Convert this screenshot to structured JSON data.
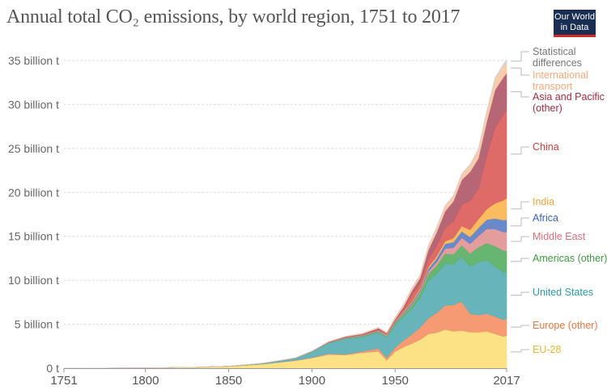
{
  "header": {
    "title": "Annual total CO₂ emissions, by world region, 1751 to 2017",
    "logo_line1": "Our World",
    "logo_line2": "in Data"
  },
  "chart_data": {
    "type": "area",
    "stacked": true,
    "title": "Annual total CO₂ emissions, by world region, 1751 to 2017",
    "xlabel": "",
    "ylabel": "",
    "xlim": [
      1751,
      2017
    ],
    "ylim": [
      0,
      35
    ],
    "unit": "billion t",
    "grid": true,
    "legend_placement": "right (labels at series ends)",
    "x_ticks": [
      "1751",
      "1800",
      "1850",
      "1900",
      "1950",
      "2017"
    ],
    "y_ticks": [
      "0 t",
      "5 billion t",
      "10 billion t",
      "15 billion t",
      "20 billion t",
      "25 billion t",
      "30 billion t",
      "35 billion t"
    ],
    "y_tick_values": [
      0,
      5,
      10,
      15,
      20,
      25,
      30,
      35
    ],
    "x": [
      1751,
      1800,
      1830,
      1850,
      1870,
      1890,
      1900,
      1910,
      1920,
      1930,
      1940,
      1945,
      1950,
      1955,
      1960,
      1965,
      1970,
      1975,
      1980,
      1985,
      1990,
      1995,
      2000,
      2005,
      2010,
      2015,
      2017
    ],
    "series": [
      {
        "name": "EU-28",
        "color": "#fddf7e",
        "label_color": "#e6b830",
        "values": [
          0.01,
          0.03,
          0.1,
          0.2,
          0.45,
          0.85,
          1.15,
          1.55,
          1.5,
          1.75,
          1.9,
          0.9,
          1.9,
          2.4,
          2.8,
          3.25,
          3.9,
          4.05,
          4.4,
          4.2,
          4.3,
          4.1,
          4.1,
          4.2,
          3.9,
          3.6,
          3.7
        ]
      },
      {
        "name": "Europe (other)",
        "color": "#f4956a",
        "label_color": "#e6763e",
        "values": [
          0.0,
          0.0,
          0.0,
          0.01,
          0.02,
          0.04,
          0.07,
          0.1,
          0.08,
          0.15,
          0.35,
          0.3,
          0.45,
          0.75,
          1.05,
          1.4,
          1.8,
          2.25,
          2.75,
          3.0,
          3.3,
          2.1,
          1.95,
          2.0,
          2.0,
          1.9,
          1.95
        ]
      },
      {
        "name": "United States",
        "color": "#5fb0b6",
        "label_color": "#2a9aa3",
        "values": [
          0.0,
          0.0,
          0.01,
          0.02,
          0.08,
          0.25,
          0.65,
          1.2,
          1.75,
          1.65,
          1.8,
          2.3,
          2.55,
          2.7,
          2.9,
          3.35,
          4.3,
          4.45,
          4.75,
          4.6,
          5.1,
          5.35,
          6.0,
          6.1,
          5.7,
          5.4,
          5.3
        ]
      },
      {
        "name": "Americas (other)",
        "color": "#5eb168",
        "label_color": "#3f9a3f",
        "values": [
          0.0,
          0.0,
          0.0,
          0.0,
          0.0,
          0.01,
          0.02,
          0.05,
          0.08,
          0.1,
          0.12,
          0.15,
          0.22,
          0.3,
          0.42,
          0.55,
          0.75,
          0.95,
          1.15,
          1.15,
          1.3,
          1.5,
          1.7,
          1.95,
          2.3,
          2.5,
          2.4
        ]
      },
      {
        "name": "Middle East",
        "color": "#e29898",
        "label_color": "#d8707a",
        "values": [
          0.0,
          0.0,
          0.0,
          0.0,
          0.0,
          0.0,
          0.0,
          0.0,
          0.01,
          0.01,
          0.02,
          0.03,
          0.05,
          0.08,
          0.12,
          0.18,
          0.27,
          0.4,
          0.55,
          0.75,
          0.85,
          1.1,
          1.3,
          1.6,
          1.95,
          2.1,
          2.15
        ]
      },
      {
        "name": "Africa",
        "color": "#6283c8",
        "label_color": "#3e63b1",
        "values": [
          0.0,
          0.0,
          0.0,
          0.0,
          0.0,
          0.01,
          0.01,
          0.02,
          0.03,
          0.04,
          0.05,
          0.06,
          0.1,
          0.14,
          0.17,
          0.22,
          0.3,
          0.42,
          0.55,
          0.65,
          0.72,
          0.8,
          0.9,
          1.05,
          1.2,
          1.35,
          1.4
        ]
      },
      {
        "name": "India",
        "color": "#fbb856",
        "label_color": "#f2a33a",
        "values": [
          0.0,
          0.0,
          0.0,
          0.0,
          0.0,
          0.01,
          0.02,
          0.03,
          0.04,
          0.05,
          0.06,
          0.07,
          0.08,
          0.1,
          0.12,
          0.16,
          0.2,
          0.26,
          0.3,
          0.45,
          0.6,
          0.8,
          1.0,
          1.2,
          1.7,
          2.25,
          2.45
        ]
      },
      {
        "name": "China",
        "color": "#dd6360",
        "label_color": "#d03d3d",
        "values": [
          0.0,
          0.0,
          0.0,
          0.0,
          0.0,
          0.0,
          0.0,
          0.0,
          0.01,
          0.02,
          0.05,
          0.06,
          0.08,
          0.25,
          0.8,
          0.55,
          0.9,
          1.2,
          1.5,
          1.9,
          2.45,
          3.3,
          3.4,
          6.0,
          8.6,
          9.8,
          10.0
        ]
      },
      {
        "name": "Asia and Pacific (other)",
        "color": "#b35e6f",
        "label_color": "#a32c3f",
        "values": [
          0.0,
          0.0,
          0.0,
          0.0,
          0.0,
          0.01,
          0.03,
          0.05,
          0.08,
          0.12,
          0.2,
          0.12,
          0.15,
          0.25,
          0.4,
          0.6,
          1.05,
          1.5,
          1.9,
          2.3,
          2.8,
          3.3,
          3.5,
          3.9,
          4.3,
          4.2,
          4.2
        ]
      },
      {
        "name": "International transport",
        "color": "#f9c9a5",
        "label_color": "#f7aa78",
        "values": [
          0.0,
          0.0,
          0.0,
          0.0,
          0.0,
          0.0,
          0.0,
          0.02,
          0.05,
          0.07,
          0.1,
          0.1,
          0.2,
          0.25,
          0.3,
          0.35,
          0.45,
          0.5,
          0.55,
          0.55,
          0.6,
          0.7,
          0.9,
          1.0,
          1.1,
          1.2,
          1.2
        ]
      },
      {
        "name": "Statistical differences",
        "color": "#d9d1cf",
        "label_color": "#777777",
        "values": [
          0.0,
          0.0,
          0.0,
          0.0,
          0.0,
          0.0,
          0.0,
          0.0,
          0.0,
          0.0,
          0.0,
          0.0,
          0.02,
          0.03,
          0.05,
          0.05,
          0.08,
          0.1,
          0.1,
          0.1,
          0.12,
          0.15,
          0.2,
          0.25,
          0.3,
          0.3,
          0.35
        ]
      }
    ],
    "labels": [
      {
        "series": "Statistical differences",
        "lines": [
          "Statistical",
          "differences"
        ]
      },
      {
        "series": "International transport",
        "lines": [
          "International",
          "transport"
        ]
      },
      {
        "series": "Asia and Pacific (other)",
        "lines": [
          "Asia and Pacific",
          "(other)"
        ]
      },
      {
        "series": "China",
        "lines": [
          "China"
        ]
      },
      {
        "series": "India",
        "lines": [
          "India"
        ]
      },
      {
        "series": "Africa",
        "lines": [
          "Africa"
        ]
      },
      {
        "series": "Middle East",
        "lines": [
          "Middle East"
        ]
      },
      {
        "series": "Americas (other)",
        "lines": [
          "Americas (other)"
        ]
      },
      {
        "series": "United States",
        "lines": [
          "United States"
        ]
      },
      {
        "series": "Europe (other)",
        "lines": [
          "Europe (other)"
        ]
      },
      {
        "series": "EU-28",
        "lines": [
          "EU-28"
        ]
      }
    ]
  }
}
